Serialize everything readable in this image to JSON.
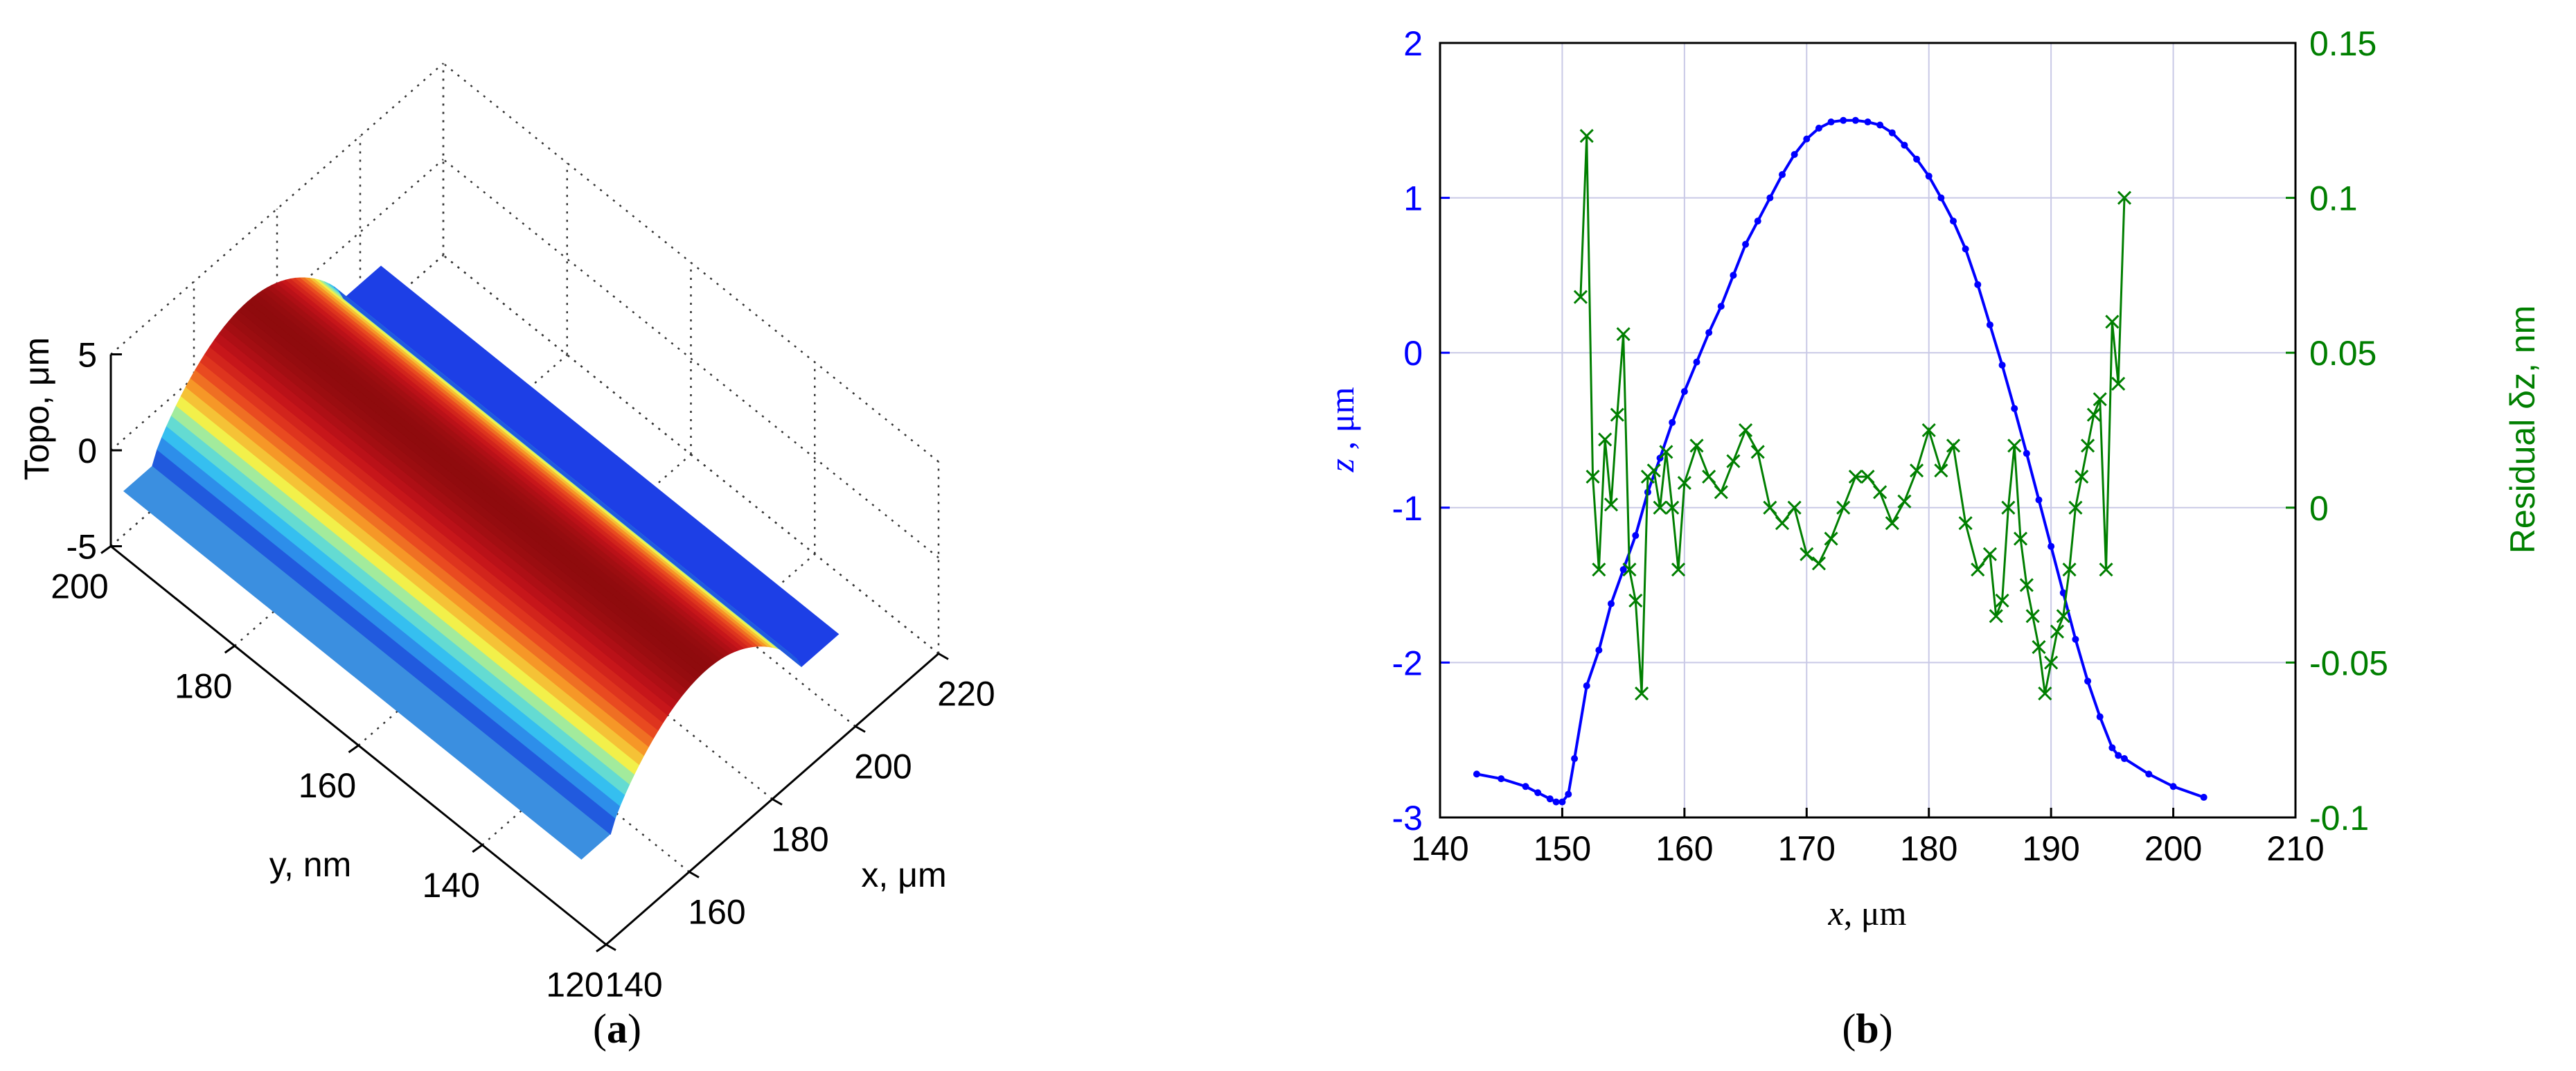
{
  "chart_data": [
    {
      "panel": "a",
      "type": "surface3d",
      "caption_letter": "a",
      "zlabel": "Topo, μm",
      "ylabel": "y, nm",
      "xlabel": "x, μm",
      "xlim": [
        140,
        220
      ],
      "ylim": [
        120,
        200
      ],
      "zlim": [
        -5,
        5
      ],
      "xticks": [
        "140",
        "160",
        "180",
        "200",
        "220"
      ],
      "yticks": [
        "120",
        "140",
        "160",
        "180",
        "200"
      ],
      "zticks": [
        "-5",
        "0",
        "5"
      ],
      "ridge": {
        "x_start": 150,
        "x_end": 196,
        "base_z": -2.7,
        "peak_z": 1.5,
        "y_range": [
          126,
          200
        ]
      },
      "colormap": "jet",
      "grid": true
    },
    {
      "panel": "b",
      "type": "line",
      "caption_letter": "b",
      "xlabel_var": "x",
      "xlabel_unit": ", μm",
      "ylabel_left_var": "z",
      "ylabel_left_unit": " , μm",
      "ylabel_right": "Residual δz, nm",
      "xlim": [
        140,
        210
      ],
      "ylim_left": [
        -3,
        2
      ],
      "ylim_right": [
        -0.1,
        0.15
      ],
      "xticks": [
        "140",
        "150",
        "160",
        "170",
        "180",
        "190",
        "200",
        "210"
      ],
      "yticks_left": [
        "-3",
        "-2",
        "-1",
        "0",
        "1",
        "2"
      ],
      "yticks_right": [
        "-0.1",
        "-0.05",
        "0",
        "0.05",
        "0.1",
        "0.15"
      ],
      "grid": true,
      "colors": {
        "left": "#0000ff",
        "right": "#007f00"
      },
      "series": [
        {
          "axis": "left",
          "marker": "dot",
          "x": [
            143,
            145,
            147,
            148,
            149,
            149.5,
            150,
            150.5,
            151,
            152,
            153,
            154,
            155,
            156,
            157,
            158,
            159,
            160,
            161,
            162,
            163,
            164,
            165,
            166,
            167,
            168,
            169,
            170,
            171,
            172,
            173,
            174,
            175,
            176,
            177,
            178,
            179,
            180,
            181,
            182,
            183,
            184,
            185,
            186,
            187,
            188,
            189,
            190,
            191,
            192,
            193,
            194,
            195,
            195.5,
            196,
            198,
            200,
            202.5
          ],
          "y": [
            -2.72,
            -2.75,
            -2.8,
            -2.84,
            -2.88,
            -2.9,
            -2.9,
            -2.85,
            -2.62,
            -2.15,
            -1.92,
            -1.62,
            -1.4,
            -1.18,
            -0.9,
            -0.68,
            -0.45,
            -0.25,
            -0.06,
            0.13,
            0.3,
            0.5,
            0.7,
            0.85,
            1.0,
            1.15,
            1.28,
            1.38,
            1.45,
            1.49,
            1.5,
            1.5,
            1.49,
            1.47,
            1.42,
            1.34,
            1.25,
            1.14,
            1.0,
            0.85,
            0.67,
            0.44,
            0.18,
            -0.08,
            -0.36,
            -0.65,
            -0.95,
            -1.25,
            -1.55,
            -1.85,
            -2.12,
            -2.35,
            -2.55,
            -2.6,
            -2.62,
            -2.72,
            -2.8,
            -2.87
          ]
        },
        {
          "axis": "right",
          "marker": "x",
          "x": [
            151.5,
            152,
            152.5,
            153,
            153.5,
            154,
            154.5,
            155,
            155.5,
            156,
            156.5,
            157,
            157.5,
            158,
            158.5,
            159,
            159.5,
            160,
            161,
            162,
            163,
            164,
            165,
            166,
            167,
            168,
            169,
            170,
            171,
            172,
            173,
            174,
            175,
            176,
            177,
            178,
            179,
            180,
            181,
            182,
            183,
            184,
            185,
            185.5,
            186,
            186.5,
            187,
            187.5,
            188,
            188.5,
            189,
            189.5,
            190,
            190.5,
            191,
            191.5,
            192,
            192.5,
            193,
            193.5,
            194,
            194.5,
            195,
            195.5,
            196
          ],
          "y": [
            0.068,
            0.12,
            0.01,
            -0.02,
            0.022,
            0.001,
            0.03,
            0.056,
            -0.02,
            -0.03,
            -0.06,
            0.01,
            0.012,
            0.0,
            0.018,
            0.0,
            -0.02,
            0.008,
            0.02,
            0.01,
            0.005,
            0.015,
            0.025,
            0.018,
            0.0,
            -0.005,
            0.0,
            -0.015,
            -0.018,
            -0.01,
            0.0,
            0.01,
            0.01,
            0.005,
            -0.005,
            0.002,
            0.012,
            0.025,
            0.012,
            0.02,
            -0.005,
            -0.02,
            -0.015,
            -0.035,
            -0.03,
            0.0,
            0.02,
            -0.01,
            -0.025,
            -0.035,
            -0.045,
            -0.06,
            -0.05,
            -0.04,
            -0.035,
            -0.02,
            0.0,
            0.01,
            0.02,
            0.03,
            0.035,
            -0.02,
            0.06,
            0.04,
            0.1
          ]
        }
      ]
    }
  ]
}
